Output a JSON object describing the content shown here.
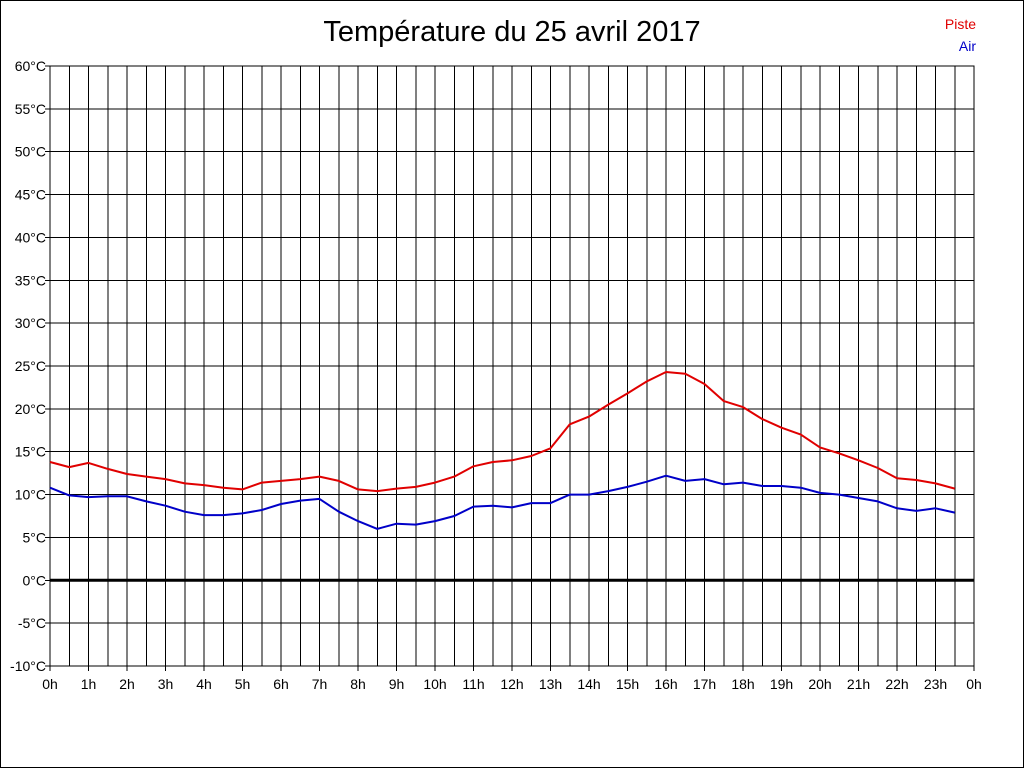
{
  "chart_data": {
    "type": "line",
    "title": "Température du 25 avril 2017",
    "xlabel": "",
    "ylabel": "",
    "ylim": [
      -10,
      60
    ],
    "yticks": [
      -10,
      -5,
      0,
      5,
      10,
      15,
      20,
      25,
      30,
      35,
      40,
      45,
      50,
      55,
      60
    ],
    "ytick_labels": [
      "-10°C",
      "-5°C",
      "0°C",
      "5°C",
      "10°C",
      "15°C",
      "20°C",
      "25°C",
      "30°C",
      "35°C",
      "40°C",
      "45°C",
      "50°C",
      "55°C",
      "60°C"
    ],
    "xlim": [
      0,
      24
    ],
    "xtick_labels": [
      "0h",
      "1h",
      "2h",
      "3h",
      "4h",
      "5h",
      "6h",
      "7h",
      "8h",
      "9h",
      "10h",
      "11h",
      "12h",
      "13h",
      "14h",
      "15h",
      "16h",
      "17h",
      "18h",
      "19h",
      "20h",
      "21h",
      "22h",
      "23h",
      "0h"
    ],
    "grid": true,
    "legend_position": "top-right",
    "series": [
      {
        "name": "Piste",
        "color": "#e00000",
        "x": [
          0,
          0.5,
          1,
          1.5,
          2,
          2.5,
          3,
          3.5,
          4,
          4.5,
          5,
          5.5,
          6,
          6.5,
          7,
          7.5,
          8,
          8.5,
          9,
          9.5,
          10,
          10.5,
          11,
          11.5,
          12,
          12.5,
          13,
          13.5,
          14,
          14.5,
          15,
          15.5,
          16,
          16.5,
          17,
          17.5,
          18,
          18.5,
          19,
          19.5,
          20,
          20.5,
          21,
          21.5,
          22,
          22.5,
          23,
          23.5
        ],
        "values": [
          13.8,
          13.2,
          13.7,
          13.0,
          12.4,
          12.1,
          11.8,
          11.3,
          11.1,
          10.8,
          10.6,
          11.4,
          11.6,
          11.8,
          12.1,
          11.6,
          10.6,
          10.4,
          10.7,
          10.9,
          11.4,
          12.1,
          13.3,
          13.8,
          14.0,
          14.5,
          15.4,
          18.2,
          19.1,
          20.5,
          21.8,
          23.2,
          24.3,
          24.1,
          22.9,
          20.9,
          20.2,
          18.8,
          17.8,
          17.0,
          15.5,
          14.8,
          14.0,
          13.1,
          11.9,
          11.7,
          11.3,
          10.7
        ]
      },
      {
        "name": "Air",
        "color": "#0000c8",
        "x": [
          0,
          0.5,
          1,
          1.5,
          2,
          2.5,
          3,
          3.5,
          4,
          4.5,
          5,
          5.5,
          6,
          6.5,
          7,
          7.5,
          8,
          8.5,
          9,
          9.5,
          10,
          10.5,
          11,
          11.5,
          12,
          12.5,
          13,
          13.5,
          14,
          14.5,
          15,
          15.5,
          16,
          16.5,
          17,
          17.5,
          18,
          18.5,
          19,
          19.5,
          20,
          20.5,
          21,
          21.5,
          22,
          22.5,
          23,
          23.5
        ],
        "values": [
          10.8,
          9.9,
          9.7,
          9.8,
          9.8,
          9.2,
          8.7,
          8.0,
          7.6,
          7.6,
          7.8,
          8.2,
          8.9,
          9.3,
          9.5,
          8.0,
          6.9,
          6.0,
          6.6,
          6.5,
          6.9,
          7.5,
          8.6,
          8.7,
          8.5,
          9.0,
          9.0,
          10.0,
          10.0,
          10.4,
          10.9,
          11.5,
          12.2,
          11.6,
          11.8,
          11.2,
          11.4,
          11.0,
          11.0,
          10.8,
          10.2,
          10.0,
          9.6,
          9.2,
          8.4,
          8.1,
          8.4,
          7.9
        ]
      }
    ]
  }
}
